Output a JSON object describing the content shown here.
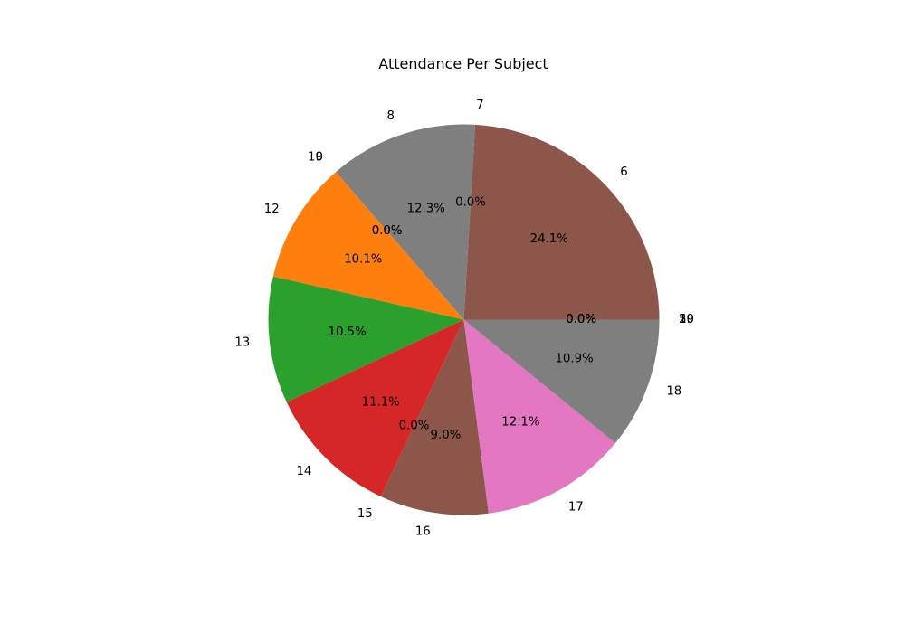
{
  "chart_data": {
    "type": "pie",
    "title": "Attendance Per Subject",
    "slices": [
      {
        "label": "5",
        "value": 0.0,
        "pct_label": "0.0%",
        "color": "#8c564b"
      },
      {
        "label": "6",
        "value": 24.1,
        "pct_label": "24.1%",
        "color": "#8c564b"
      },
      {
        "label": "7",
        "value": 0.0,
        "pct_label": "0.0%",
        "color": "#e377c2"
      },
      {
        "label": "8",
        "value": 12.3,
        "pct_label": "12.3%",
        "color": "#7f7f7f"
      },
      {
        "label": "9",
        "value": 0.0,
        "pct_label": "0.0%",
        "color": "#bcbd22"
      },
      {
        "label": "10",
        "value": 0.0,
        "pct_label": "0.0%",
        "color": "#17becf"
      },
      {
        "label": "12",
        "value": 10.1,
        "pct_label": "10.1%",
        "color": "#ff7f0e"
      },
      {
        "label": "13",
        "value": 10.5,
        "pct_label": "10.5%",
        "color": "#2ca02c"
      },
      {
        "label": "14",
        "value": 11.1,
        "pct_label": "11.1%",
        "color": "#d62728"
      },
      {
        "label": "15",
        "value": 0.0,
        "pct_label": "0.0%",
        "color": "#9467bd"
      },
      {
        "label": "16",
        "value": 9.0,
        "pct_label": "9.0%",
        "color": "#8c564b"
      },
      {
        "label": "17",
        "value": 12.1,
        "pct_label": "12.1%",
        "color": "#e377c2"
      },
      {
        "label": "18",
        "value": 10.9,
        "pct_label": "10.9%",
        "color": "#7f7f7f"
      },
      {
        "label": "19",
        "value": 0.0,
        "pct_label": "0.0%",
        "color": "#bcbd22"
      },
      {
        "label": "20",
        "value": 0.0,
        "pct_label": "0.0%",
        "color": "#17becf"
      }
    ]
  }
}
